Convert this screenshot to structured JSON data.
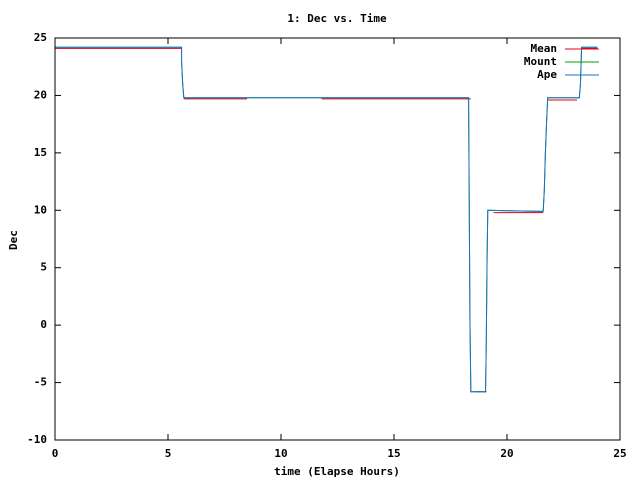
{
  "chart_data": {
    "type": "line",
    "title": "1: Dec vs. Time",
    "x_label": "time (Elapse Hours)",
    "y_label": "Dec",
    "xlim": [
      0,
      25
    ],
    "ylim": [
      -10,
      25
    ],
    "xticks": [
      0,
      5,
      10,
      15,
      20,
      25
    ],
    "yticks": [
      -10,
      -5,
      0,
      5,
      10,
      15,
      20,
      25
    ],
    "legend": "top-right",
    "series": [
      {
        "name": "Mean",
        "color": "#e0001c",
        "x": [
          0,
          5.6,
          5.6,
          5.7,
          8.5,
          8.5,
          11.8,
          18.4,
          18.4,
          18.6,
          19.1,
          19.1,
          19.4,
          21.6,
          21.6,
          21.8,
          23.1,
          23.1,
          23.3,
          24.0
        ],
        "values": [
          24.1,
          24.1,
          null,
          19.7,
          19.7,
          null,
          19.7,
          19.7,
          null,
          -5.8,
          -5.8,
          null,
          9.8,
          9.8,
          null,
          19.6,
          19.6,
          null,
          24.1,
          24.1
        ]
      },
      {
        "name": "Mount",
        "color": "#00a000",
        "x": [
          0,
          5.6,
          5.6,
          5.65,
          5.7,
          18.3,
          18.32,
          18.36,
          18.4,
          19.05,
          19.08,
          19.12,
          19.15,
          21.6,
          21.65,
          21.7,
          21.75,
          21.8,
          23.2,
          23.25,
          23.3,
          24.0
        ],
        "values": [
          24.2,
          24.2,
          23,
          21,
          19.8,
          19.8,
          13.5,
          0.5,
          -5.8,
          -5.8,
          -2,
          6,
          10,
          9.9,
          11.7,
          15.1,
          17.6,
          19.8,
          19.8,
          21,
          24.2,
          24.2
        ]
      },
      {
        "name": "Ape",
        "color": "#1f6fc8",
        "x": [
          0,
          5.6,
          5.6,
          5.65,
          5.7,
          18.3,
          18.32,
          18.36,
          18.4,
          19.05,
          19.08,
          19.12,
          19.15,
          21.6,
          21.65,
          21.7,
          21.75,
          21.8,
          23.2,
          23.25,
          23.3,
          24.0
        ],
        "values": [
          24.2,
          24.2,
          23,
          21,
          19.8,
          19.8,
          13.5,
          0.5,
          -5.8,
          -5.8,
          -2,
          6,
          10,
          9.9,
          11.7,
          15.1,
          17.6,
          19.8,
          19.8,
          21,
          24.2,
          24.2
        ]
      }
    ]
  }
}
